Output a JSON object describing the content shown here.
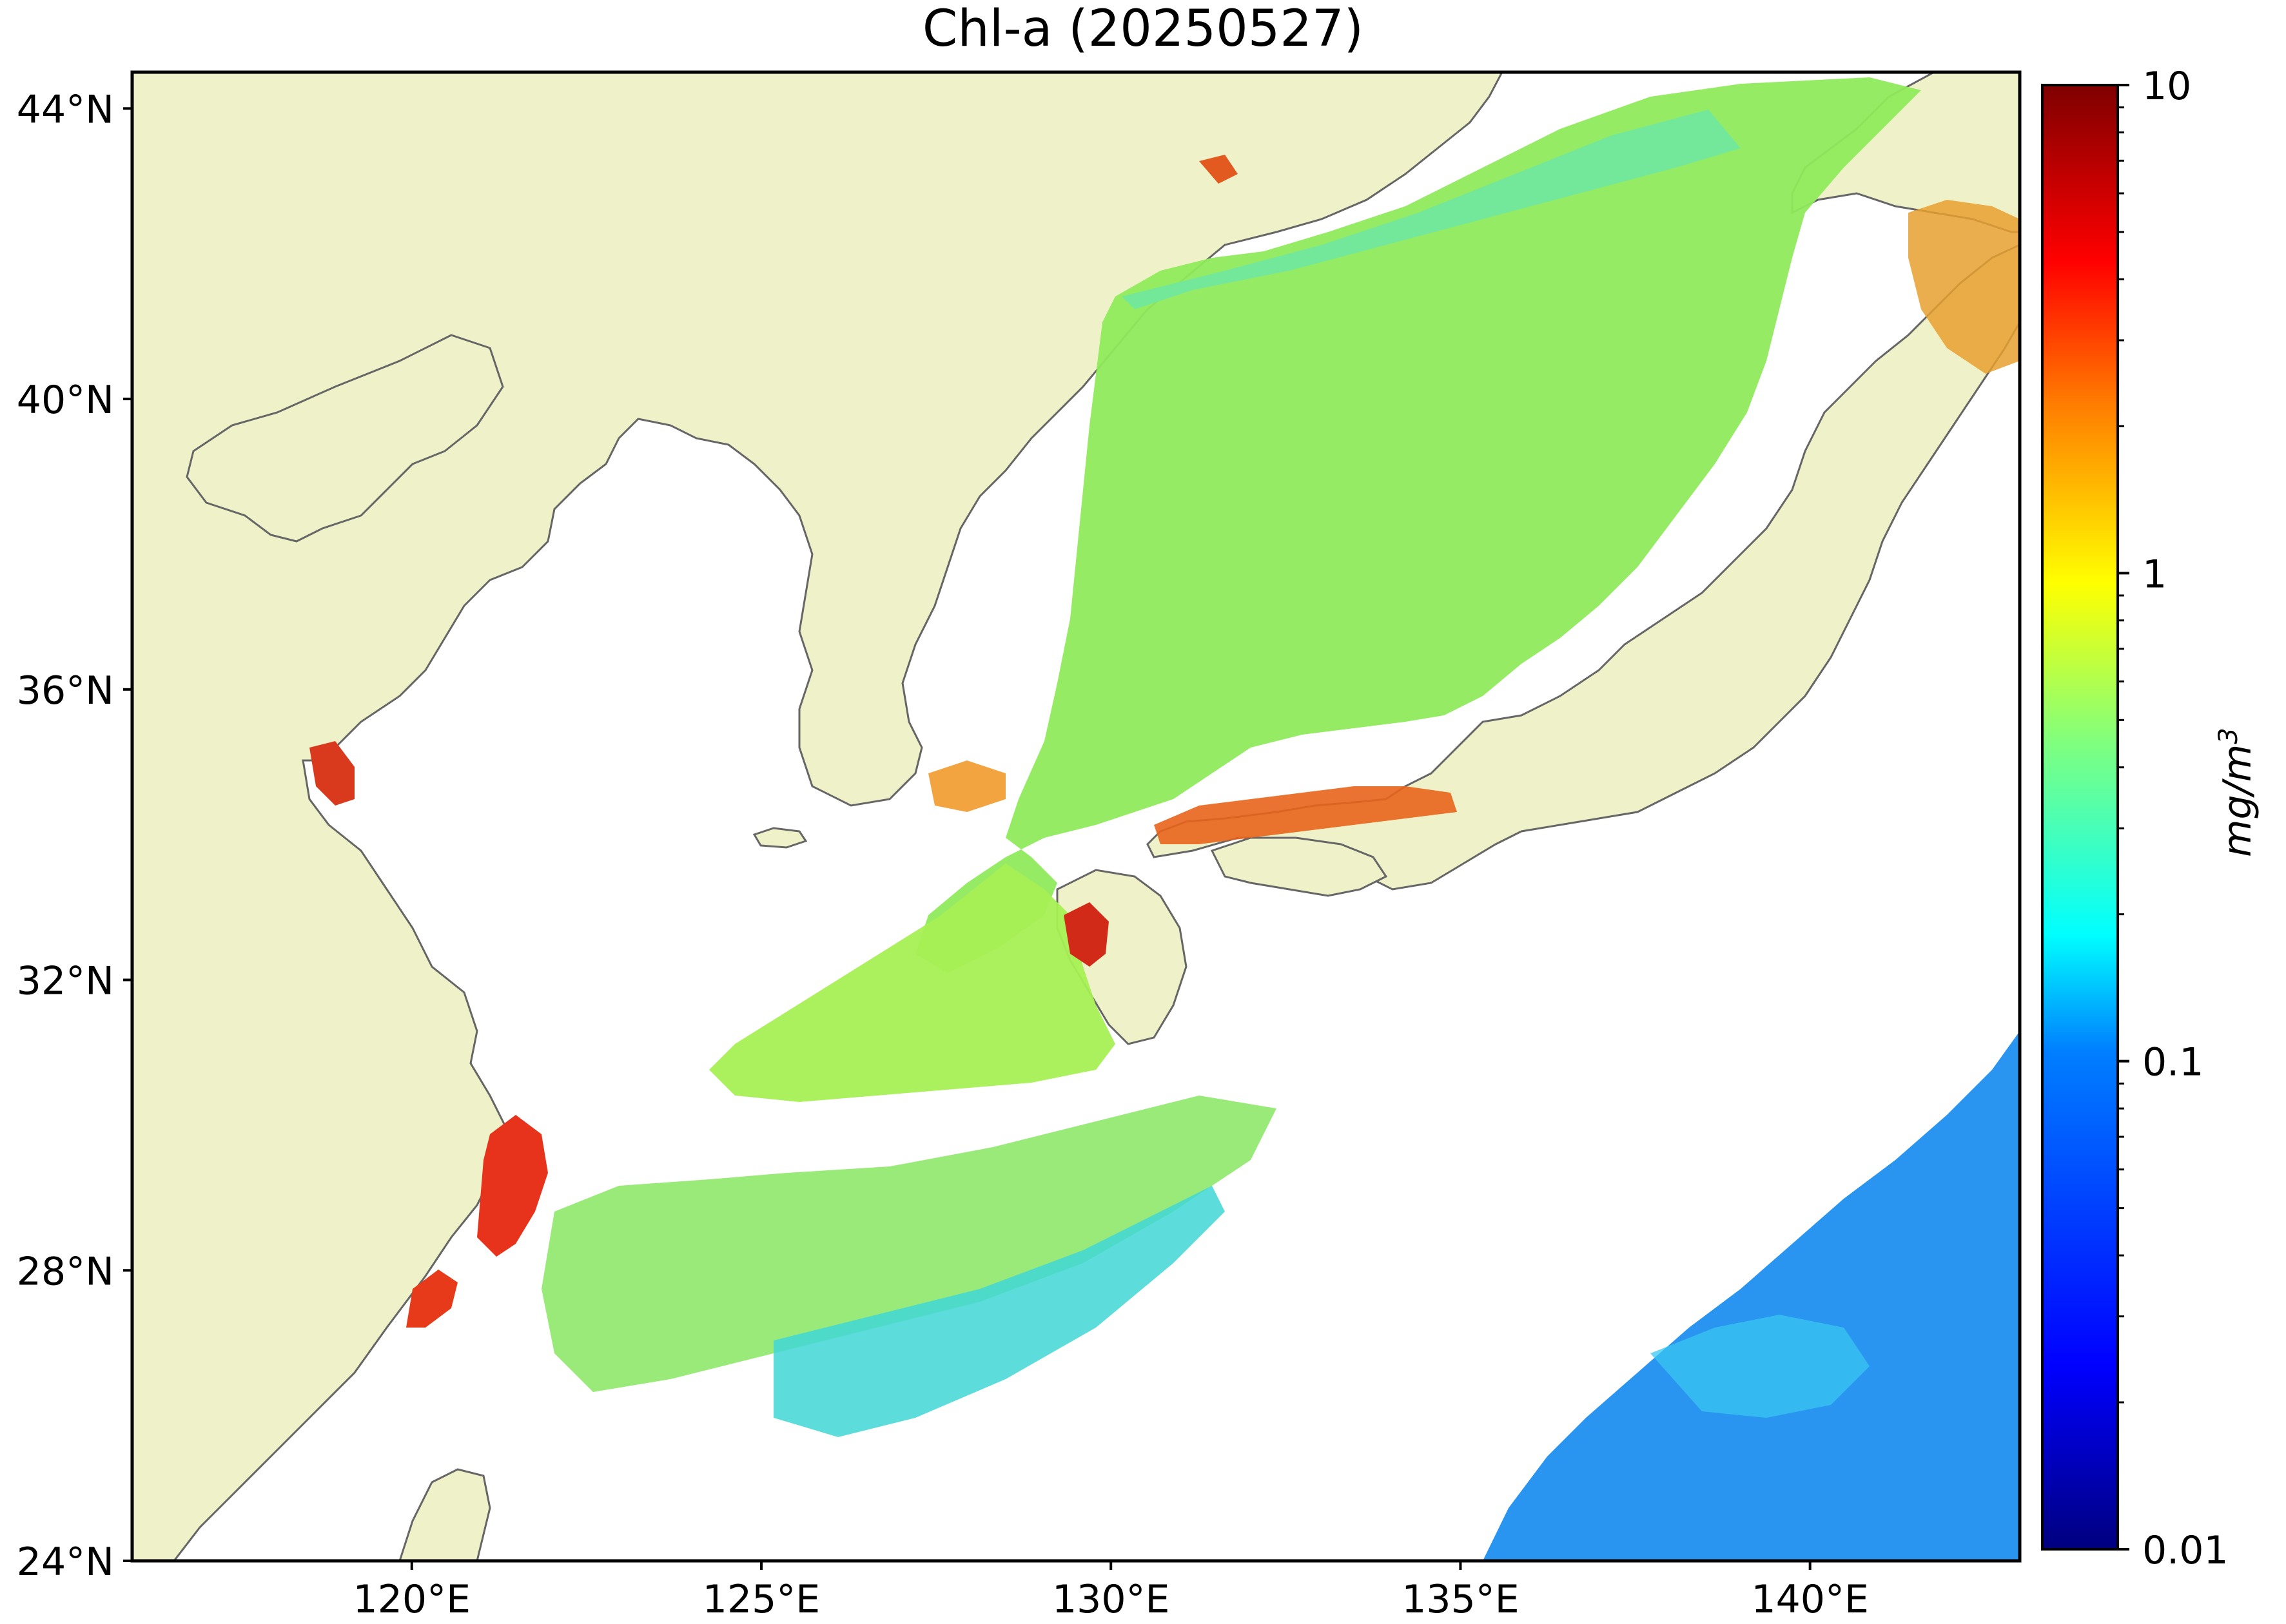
{
  "title": "Chl-a (20250527)",
  "map": {
    "lon_range": [
      116.0,
      143.0
    ],
    "lat_range": [
      24.0,
      44.5
    ],
    "land_color": "#EFF2C9",
    "ocean_nodata_color": "#FFFFFF",
    "coastline_color": "#666666",
    "lat_ticks": [
      "24°N",
      "28°N",
      "32°N",
      "36°N",
      "40°N",
      "44°N"
    ],
    "lon_ticks": [
      "120°E",
      "125°E",
      "130°E",
      "135°E",
      "140°E"
    ]
  },
  "colorbar": {
    "colormap": "jet",
    "scale": "log",
    "range": [
      0.01,
      10
    ],
    "ticks": [
      "0.01",
      "0.1",
      "1",
      "10"
    ],
    "unit_label": "mg/m3",
    "colors": [
      "#00007F",
      "#0000FF",
      "#007FFF",
      "#00FFFF",
      "#7FFF7F",
      "#FFFF00",
      "#FF7F00",
      "#FF0000",
      "#7F0000"
    ]
  }
}
